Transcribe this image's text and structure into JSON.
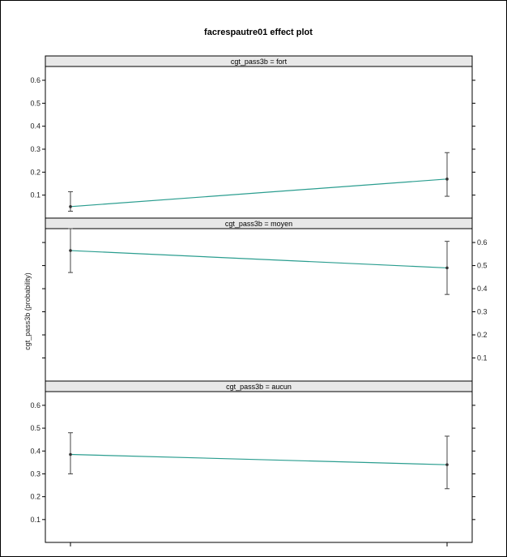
{
  "chart_data": {
    "type": "line",
    "title": "facrespautre01 effect plot",
    "ylabel": "cgt_pass3b (probability)",
    "xlabel": "",
    "x_categories": [
      "",
      ""
    ],
    "line_color": "#2a9d8f",
    "ylim": [
      0.0,
      0.66
    ],
    "yticks": [
      0.1,
      0.2,
      0.3,
      0.4,
      0.5,
      0.6
    ],
    "panels": [
      {
        "strip": "cgt_pass3b = fort",
        "values": [
          0.05,
          0.17
        ],
        "lower": [
          0.03,
          0.095
        ],
        "upper": [
          0.115,
          0.285
        ],
        "tick_side": "left"
      },
      {
        "strip": "cgt_pass3b = moyen",
        "values": [
          0.565,
          0.49
        ],
        "lower": [
          0.47,
          0.375
        ],
        "upper": [
          0.66,
          0.605
        ],
        "tick_side": "right"
      },
      {
        "strip": "cgt_pass3b = aucun",
        "values": [
          0.385,
          0.34
        ],
        "lower": [
          0.3,
          0.235
        ],
        "upper": [
          0.48,
          0.465
        ],
        "tick_side": "left"
      }
    ]
  }
}
